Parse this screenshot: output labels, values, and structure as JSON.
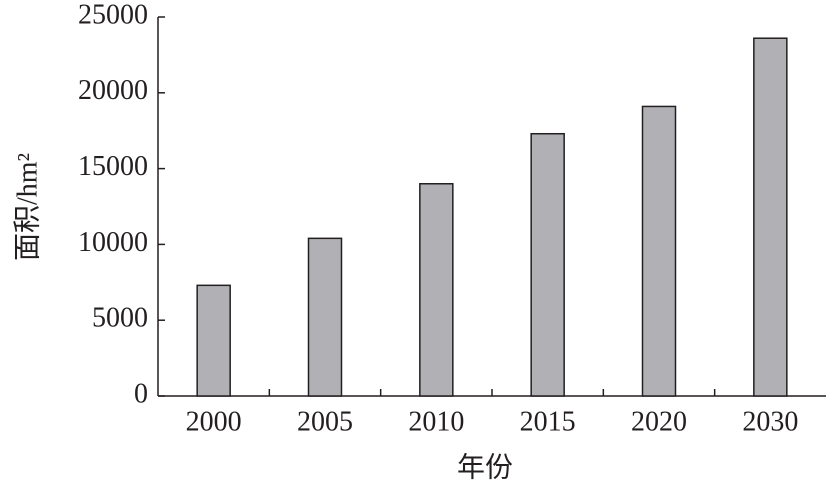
{
  "chart_data": {
    "type": "bar",
    "x_label": "年份",
    "y_label": "面积/hm²",
    "categories": [
      "2000",
      "2005",
      "2010",
      "2015",
      "2020",
      "2030"
    ],
    "values": [
      7300,
      10400,
      14000,
      17300,
      19100,
      23600
    ],
    "color": "#b1b1b5",
    "ylim": [
      0,
      25000
    ],
    "yticks": [
      0,
      5000,
      10000,
      15000,
      20000,
      25000
    ]
  }
}
